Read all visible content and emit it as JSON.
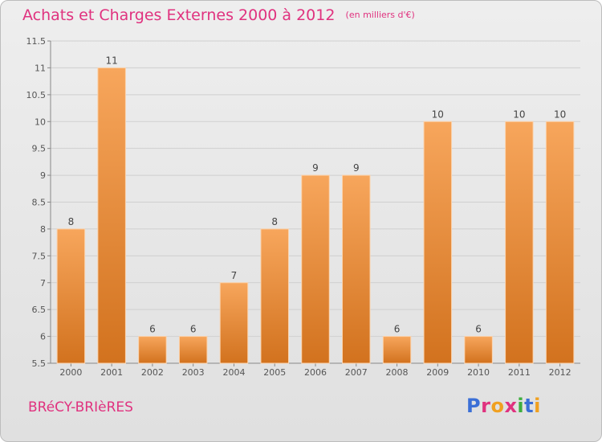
{
  "title": "Achats et Charges Externes 2000 à 2012",
  "unit": "(en milliers d'€)",
  "commune": "BRéCY-BRIèRES",
  "brand": "Proxiti",
  "colors": {
    "title": "#e0327f",
    "bar_top": "#f7a65c",
    "bar_bottom": "#d2721e",
    "grid": "#cfcfcf"
  },
  "chart_data": {
    "type": "bar",
    "categories": [
      "2000",
      "2001",
      "2002",
      "2003",
      "2004",
      "2005",
      "2006",
      "2007",
      "2008",
      "2009",
      "2010",
      "2011",
      "2012"
    ],
    "values": [
      8,
      11,
      6,
      6,
      7,
      8,
      9,
      9,
      6,
      10,
      6,
      10,
      10
    ],
    "ylim": [
      5.5,
      11.5
    ],
    "yticks": [
      "5.5",
      "6",
      "6.5",
      "7",
      "7.5",
      "8",
      "8.5",
      "9",
      "9.5",
      "10",
      "10.5",
      "11",
      "11.5"
    ],
    "grid": true,
    "data_labels": true
  }
}
